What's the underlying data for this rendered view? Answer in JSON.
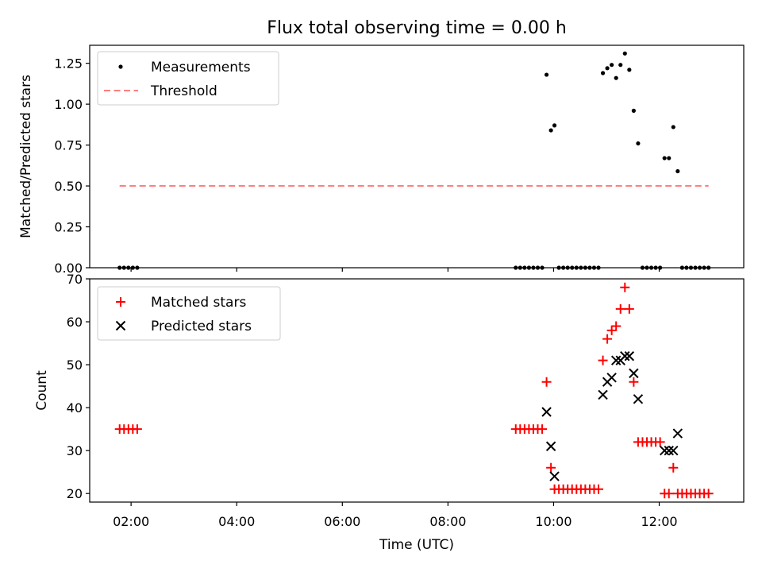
{
  "title": "Flux total observing time = 0.00 h",
  "chart_data": [
    {
      "type": "scatter",
      "panel": "top",
      "ylabel": "Matched/Predicted stars",
      "ylim": [
        0,
        1.36
      ],
      "yticks": [
        0.0,
        0.25,
        0.5,
        0.75,
        1.0,
        1.25
      ],
      "ytick_labels": [
        "0.00",
        "0.25",
        "0.50",
        "0.75",
        "1.00",
        "1.25"
      ],
      "legend_position": "top-left",
      "series": [
        {
          "name": "Measurements",
          "marker": "dot",
          "color": "#000000",
          "points": [
            [
              "01:47",
              0.0
            ],
            [
              "01:52",
              0.0
            ],
            [
              "01:57",
              0.0
            ],
            [
              "02:02",
              0.0
            ],
            [
              "02:07",
              0.0
            ],
            [
              "09:17",
              0.0
            ],
            [
              "09:22",
              0.0
            ],
            [
              "09:27",
              0.0
            ],
            [
              "09:32",
              0.0
            ],
            [
              "09:37",
              0.0
            ],
            [
              "09:42",
              0.0
            ],
            [
              "09:47",
              0.0
            ],
            [
              "09:52",
              1.18
            ],
            [
              "09:57",
              0.84
            ],
            [
              "10:01",
              0.87
            ],
            [
              "10:06",
              0.0
            ],
            [
              "10:11",
              0.0
            ],
            [
              "10:16",
              0.0
            ],
            [
              "10:21",
              0.0
            ],
            [
              "10:26",
              0.0
            ],
            [
              "10:31",
              0.0
            ],
            [
              "10:36",
              0.0
            ],
            [
              "10:41",
              0.0
            ],
            [
              "10:46",
              0.0
            ],
            [
              "10:51",
              0.0
            ],
            [
              "10:56",
              1.19
            ],
            [
              "11:01",
              1.22
            ],
            [
              "11:06",
              1.24
            ],
            [
              "11:11",
              1.16
            ],
            [
              "11:16",
              1.24
            ],
            [
              "11:21",
              1.31
            ],
            [
              "11:26",
              1.21
            ],
            [
              "11:31",
              0.96
            ],
            [
              "11:36",
              0.76
            ],
            [
              "11:41",
              0.0
            ],
            [
              "11:46",
              0.0
            ],
            [
              "11:51",
              0.0
            ],
            [
              "11:56",
              0.0
            ],
            [
              "12:01",
              0.0
            ],
            [
              "12:06",
              0.67
            ],
            [
              "12:11",
              0.67
            ],
            [
              "12:16",
              0.86
            ],
            [
              "12:21",
              0.59
            ],
            [
              "12:26",
              0.0
            ],
            [
              "12:31",
              0.0
            ],
            [
              "12:36",
              0.0
            ],
            [
              "12:41",
              0.0
            ],
            [
              "12:46",
              0.0
            ],
            [
              "12:51",
              0.0
            ],
            [
              "12:56",
              0.0
            ]
          ]
        },
        {
          "name": "Threshold",
          "style": "dashed",
          "color": "#ff7f7f",
          "points": [
            [
              "01:47",
              0.5
            ],
            [
              "12:56",
              0.5
            ]
          ]
        }
      ]
    },
    {
      "type": "scatter",
      "panel": "bottom",
      "xlabel": "Time (UTC)",
      "ylabel": "Count",
      "ylim": [
        18,
        70
      ],
      "yticks": [
        20,
        30,
        40,
        50,
        60,
        70
      ],
      "xticks": [
        "02:00",
        "04:00",
        "06:00",
        "08:00",
        "10:00",
        "12:00"
      ],
      "xlim": [
        "01:13",
        "13:36"
      ],
      "legend_position": "top-left",
      "series": [
        {
          "name": "Matched stars",
          "marker": "+",
          "color": "#ff0000",
          "points": [
            [
              "01:47",
              35
            ],
            [
              "01:52",
              35
            ],
            [
              "01:57",
              35
            ],
            [
              "02:02",
              35
            ],
            [
              "02:07",
              35
            ],
            [
              "09:17",
              35
            ],
            [
              "09:22",
              35
            ],
            [
              "09:27",
              35
            ],
            [
              "09:32",
              35
            ],
            [
              "09:37",
              35
            ],
            [
              "09:42",
              35
            ],
            [
              "09:47",
              35
            ],
            [
              "09:52",
              46
            ],
            [
              "09:57",
              26
            ],
            [
              "10:01",
              21
            ],
            [
              "10:06",
              21
            ],
            [
              "10:11",
              21
            ],
            [
              "10:16",
              21
            ],
            [
              "10:21",
              21
            ],
            [
              "10:26",
              21
            ],
            [
              "10:31",
              21
            ],
            [
              "10:36",
              21
            ],
            [
              "10:41",
              21
            ],
            [
              "10:46",
              21
            ],
            [
              "10:51",
              21
            ],
            [
              "10:56",
              51
            ],
            [
              "11:01",
              56
            ],
            [
              "11:06",
              58
            ],
            [
              "11:11",
              59
            ],
            [
              "11:16",
              63
            ],
            [
              "11:21",
              68
            ],
            [
              "11:26",
              63
            ],
            [
              "11:31",
              46
            ],
            [
              "11:36",
              32
            ],
            [
              "11:41",
              32
            ],
            [
              "11:46",
              32
            ],
            [
              "11:51",
              32
            ],
            [
              "11:56",
              32
            ],
            [
              "12:01",
              32
            ],
            [
              "12:06",
              20
            ],
            [
              "12:11",
              20
            ],
            [
              "12:16",
              26
            ],
            [
              "12:21",
              20
            ],
            [
              "12:26",
              20
            ],
            [
              "12:31",
              20
            ],
            [
              "12:36",
              20
            ],
            [
              "12:41",
              20
            ],
            [
              "12:46",
              20
            ],
            [
              "12:51",
              20
            ],
            [
              "12:56",
              20
            ]
          ]
        },
        {
          "name": "Predicted stars",
          "marker": "x",
          "color": "#000000",
          "points": [
            [
              "09:52",
              39
            ],
            [
              "09:57",
              31
            ],
            [
              "10:01",
              24
            ],
            [
              "10:56",
              43
            ],
            [
              "11:01",
              46
            ],
            [
              "11:06",
              47
            ],
            [
              "11:11",
              51
            ],
            [
              "11:16",
              51
            ],
            [
              "11:21",
              52
            ],
            [
              "11:26",
              52
            ],
            [
              "11:31",
              48
            ],
            [
              "11:36",
              42
            ],
            [
              "12:06",
              30
            ],
            [
              "12:11",
              30
            ],
            [
              "12:16",
              30
            ],
            [
              "12:21",
              34
            ]
          ]
        }
      ]
    }
  ]
}
